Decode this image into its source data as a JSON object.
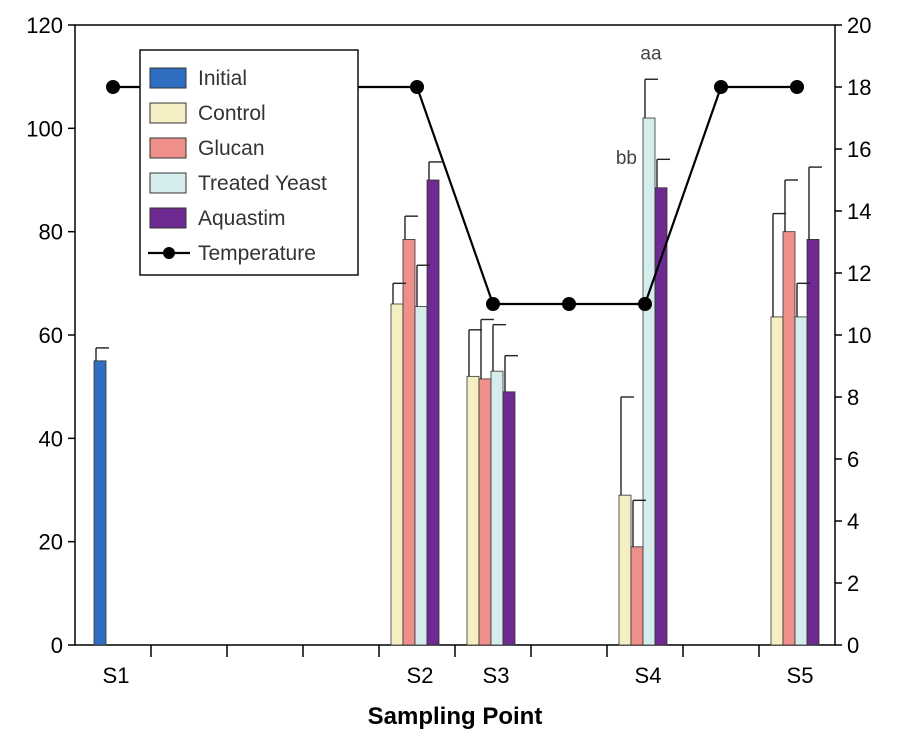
{
  "chart_data": {
    "type": "bar",
    "xlabel": "Sampling Point",
    "categories": [
      "S1",
      "S2",
      "S3",
      "S4",
      "S5"
    ],
    "ylim_left": [
      0,
      120
    ],
    "yticks_left": [
      "0",
      "20",
      "40",
      "60",
      "80",
      "100",
      "120"
    ],
    "ylim_right": [
      0,
      20
    ],
    "yticks_right": [
      "0",
      "2",
      "4",
      "6",
      "8",
      "10",
      "12",
      "14",
      "16",
      "18",
      "20"
    ],
    "legend_position": "top-left",
    "legend": [
      "Initial",
      "Control",
      "Glucan",
      "Treated Yeast",
      "Aquastim",
      "Temperature"
    ],
    "series": [
      {
        "name": "Initial",
        "color": "#2f6ec0",
        "values": [
          55,
          null,
          null,
          null,
          null
        ],
        "errors": [
          2.5,
          null,
          null,
          null,
          null
        ]
      },
      {
        "name": "Control",
        "color": "#f3efc3",
        "values": [
          null,
          66,
          52,
          29,
          63.5
        ],
        "errors": [
          null,
          4,
          9,
          19,
          20
        ]
      },
      {
        "name": "Glucan",
        "color": "#ef8f8a",
        "values": [
          null,
          78.5,
          51.5,
          19,
          80
        ],
        "errors": [
          null,
          4.5,
          11.5,
          9,
          10
        ]
      },
      {
        "name": "Treated Yeast",
        "color": "#d4ecec",
        "values": [
          null,
          65.5,
          53,
          102,
          63.5
        ],
        "errors": [
          null,
          8,
          9,
          7.5,
          6.5
        ]
      },
      {
        "name": "Aquastim",
        "color": "#6f2a91",
        "values": [
          null,
          90,
          49,
          88.5,
          78.5
        ],
        "errors": [
          null,
          3.5,
          7,
          5.5,
          14
        ]
      }
    ],
    "temperature": {
      "name": "Temperature",
      "color": "#000000",
      "x": [
        1,
        5,
        6,
        7,
        8,
        9,
        10
      ],
      "values": [
        18,
        18,
        11,
        11,
        11,
        18,
        18
      ]
    },
    "annotations": [
      {
        "text": "aa",
        "series": "Treated Yeast",
        "category": "S4"
      },
      {
        "text": "bb",
        "series": "Treated Yeast",
        "category": "S4"
      }
    ]
  }
}
